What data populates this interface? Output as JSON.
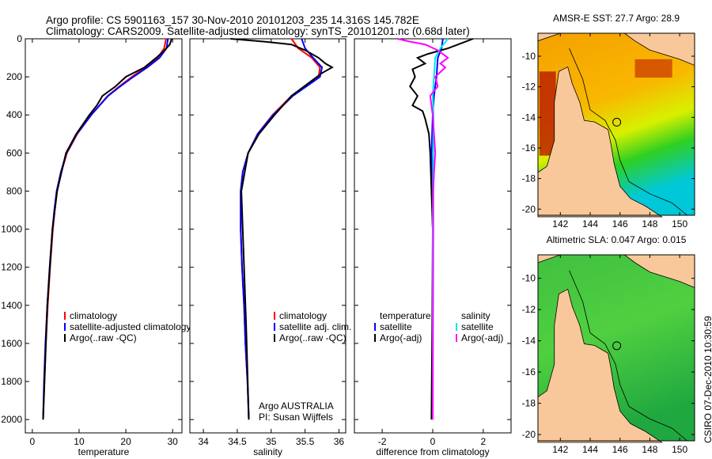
{
  "header": {
    "line1": "Argo profile: CS 5901163_157 30-Nov-2010 20101203_235 14.316S 145.782E",
    "line2": "Climatology: CARS2009. Satellite-adjusted climatology: synTS_20101201.nc (0.68d later)"
  },
  "stamp": "CSIRO 07-Dec-2010 10:30:59",
  "colors": {
    "climatology": "#ff0000",
    "satellite": "#0000ff",
    "argo": "#000000",
    "sal_satellite": "#00e5ee",
    "sal_argo": "#ff00ff",
    "land": "#f9c89a"
  },
  "chart_data": [
    {
      "type": "line",
      "id": "temperature",
      "xlabel": "temperature",
      "ylabel": "",
      "xlim": [
        -1.5,
        32
      ],
      "ylim": [
        2070,
        0
      ],
      "xticks": [
        0,
        10,
        20,
        30
      ],
      "yticks": [
        0,
        200,
        400,
        600,
        800,
        1000,
        1200,
        1400,
        1600,
        1800,
        2000
      ],
      "legend": [
        "climatology",
        "satellite-adjusted climatology",
        "Argo(..raw -QC)"
      ],
      "legend_position": "bottom-right",
      "series": [
        {
          "name": "climatology",
          "color": "#ff0000",
          "depth": [
            0,
            50,
            100,
            150,
            200,
            250,
            300,
            400,
            500,
            600,
            700,
            800,
            900,
            1000,
            1200,
            1400,
            1600,
            1800,
            2000
          ],
          "values": [
            28.6,
            28.2,
            26.8,
            24.2,
            21.3,
            18.6,
            16.1,
            12.6,
            9.6,
            7.4,
            6.2,
            5.3,
            4.8,
            4.4,
            3.8,
            3.3,
            2.9,
            2.6,
            2.3
          ]
        },
        {
          "name": "satellite-adjusted climatology",
          "color": "#0000ff",
          "depth": [
            0,
            50,
            100,
            150,
            200,
            250,
            300,
            400,
            500,
            600,
            700,
            800,
            900,
            1000,
            1200,
            1400,
            1600,
            1800,
            2000
          ],
          "values": [
            29.0,
            28.7,
            27.2,
            24.6,
            21.6,
            18.8,
            16.2,
            12.6,
            9.5,
            7.3,
            6.1,
            5.2,
            4.7,
            4.3,
            3.7,
            3.2,
            2.8,
            2.5,
            2.3
          ]
        },
        {
          "name": "Argo(..raw -QC)",
          "color": "#000000",
          "depth": [
            0,
            30,
            60,
            100,
            150,
            200,
            250,
            300,
            350,
            400,
            500,
            600,
            800,
            1000,
            1400,
            2000
          ],
          "values": [
            29.8,
            29.4,
            28.3,
            26.5,
            24.0,
            20.0,
            17.8,
            15.0,
            13.8,
            12.2,
            9.4,
            7.2,
            5.3,
            4.3,
            3.2,
            2.3
          ]
        }
      ]
    },
    {
      "type": "line",
      "id": "salinity",
      "xlabel": "salinity",
      "xlim": [
        33.8,
        36.1
      ],
      "ylim": [
        2070,
        0
      ],
      "xticks": [
        34,
        34.5,
        35,
        35.5,
        36
      ],
      "legend": [
        "climatology",
        "satellite adj. clim.",
        "Argo(..raw -QC)"
      ],
      "legend_position": "bottom-right",
      "annotation": [
        "Argo AUSTRALIA",
        "PI: Susan Wijffels"
      ],
      "series": [
        {
          "name": "climatology",
          "color": "#ff0000",
          "depth": [
            0,
            50,
            100,
            150,
            200,
            250,
            300,
            400,
            500,
            600,
            700,
            800,
            1000,
            1200,
            1400,
            1600,
            1800,
            2000
          ],
          "values": [
            35.3,
            35.4,
            35.6,
            35.72,
            35.7,
            35.5,
            35.3,
            35.02,
            34.8,
            34.66,
            34.58,
            34.55,
            34.55,
            34.57,
            34.6,
            34.62,
            34.65,
            34.67
          ]
        },
        {
          "name": "satellite adj. clim.",
          "color": "#0000ff",
          "depth": [
            0,
            50,
            100,
            150,
            200,
            250,
            300,
            400,
            500,
            600,
            700,
            800,
            1000,
            1200,
            1400,
            1600,
            1800,
            2000
          ],
          "values": [
            35.45,
            35.5,
            35.62,
            35.75,
            35.72,
            35.52,
            35.32,
            35.03,
            34.8,
            34.66,
            34.58,
            34.55,
            34.55,
            34.57,
            34.6,
            34.62,
            34.65,
            34.67
          ]
        },
        {
          "name": "Argo(..raw -QC)",
          "color": "#000000",
          "depth": [
            0,
            15,
            30,
            60,
            100,
            130,
            150,
            180,
            220,
            300,
            400,
            500,
            600,
            800,
            1000,
            1500,
            2000
          ],
          "values": [
            34.4,
            34.9,
            35.3,
            35.5,
            35.7,
            35.8,
            35.9,
            35.75,
            35.6,
            35.3,
            35.05,
            34.82,
            34.66,
            34.56,
            34.58,
            34.63,
            34.67
          ]
        }
      ]
    },
    {
      "type": "line",
      "id": "difference",
      "xlabel": "difference from climatology",
      "xlim": [
        -3.1,
        3.1
      ],
      "ylim": [
        2070,
        0
      ],
      "xticks": [
        -2,
        0,
        2
      ],
      "legend_temperature": {
        "title": "temperature",
        "items": [
          "satellite",
          "Argo(-adj)"
        ]
      },
      "legend_salinity": {
        "title": "salinity",
        "items": [
          "satellite",
          "Argo(-adj)"
        ]
      },
      "series": [
        {
          "name": "temperature satellite",
          "color": "#0000ff",
          "depth": [
            0,
            50,
            100,
            200,
            300,
            400,
            600,
            1000,
            2000
          ],
          "values": [
            0.4,
            0.35,
            0.2,
            0.15,
            0.05,
            0.0,
            -0.05,
            0,
            0
          ]
        },
        {
          "name": "temperature Argo(-adj)",
          "color": "#000000",
          "depth": [
            0,
            20,
            50,
            80,
            100,
            130,
            160,
            200,
            250,
            300,
            350,
            380,
            420,
            500,
            600,
            800,
            1000,
            1500,
            2000
          ],
          "values": [
            1.6,
            1.2,
            0.6,
            -0.2,
            -0.6,
            -0.3,
            -0.8,
            -0.7,
            -0.9,
            -0.6,
            -0.8,
            -0.4,
            -0.3,
            -0.15,
            -0.1,
            -0.05,
            0,
            -0.02,
            -0.05
          ]
        },
        {
          "name": "salinity satellite",
          "color": "#00e5ee",
          "depth": [
            0,
            50,
            100,
            200,
            300,
            400,
            600,
            1000,
            2000
          ],
          "values": [
            0.6,
            0.3,
            0.1,
            0.05,
            0.0,
            0.03,
            0.02,
            0,
            0
          ]
        },
        {
          "name": "salinity Argo(-adj)",
          "color": "#ff00ff",
          "depth": [
            0,
            15,
            30,
            60,
            100,
            130,
            150,
            200,
            250,
            300,
            400,
            500,
            600,
            700,
            800,
            1000,
            2000
          ],
          "values": [
            -1.4,
            -0.9,
            -0.3,
            0.2,
            0.6,
            0.3,
            0.5,
            0.1,
            0.2,
            -0.1,
            0.0,
            0.05,
            0.1,
            0.05,
            0.02,
            0.02,
            0
          ]
        }
      ]
    }
  ],
  "maps": [
    {
      "id": "sst",
      "title": "AMSR-E SST: 27.7 Argo: 28.9",
      "lon_ticks": [
        142,
        144,
        146,
        148,
        150
      ],
      "lat_ticks": [
        -10,
        -12,
        -14,
        -16,
        -18,
        -20
      ],
      "argo_position": [
        145.782,
        -14.316
      ]
    },
    {
      "id": "sla",
      "title": "Altimetric SLA: 0.047 Argo: 0.015",
      "lon_ticks": [
        142,
        144,
        146,
        148,
        150
      ],
      "lat_ticks": [
        -10,
        -12,
        -14,
        -16,
        -18,
        -20
      ],
      "argo_position": [
        145.782,
        -14.316
      ]
    }
  ]
}
